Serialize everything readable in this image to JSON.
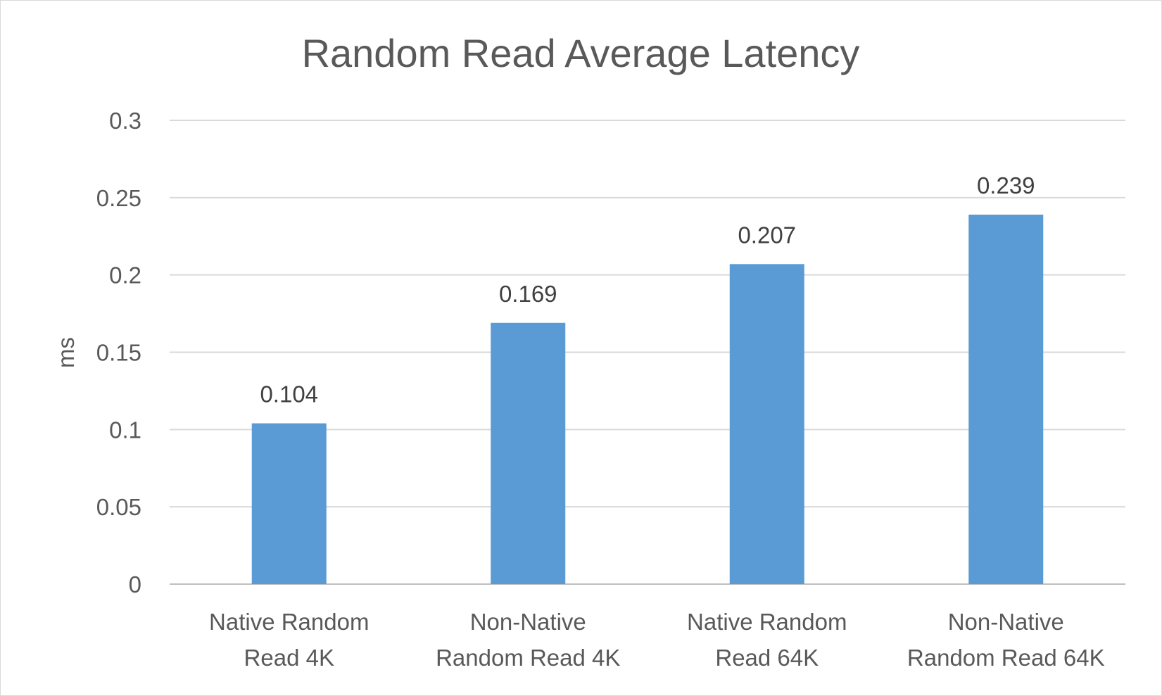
{
  "chart_data": {
    "type": "bar",
    "title": "Random Read Average Latency",
    "xlabel": "",
    "ylabel": "ms",
    "ylim": [
      0,
      0.3
    ],
    "yticks": [
      "0",
      "0.05",
      "0.1",
      "0.15",
      "0.2",
      "0.25",
      "0.3"
    ],
    "categories": [
      [
        "Native Random",
        "Read 4K"
      ],
      [
        "Non-Native",
        "Random Read 4K"
      ],
      [
        "Native Random",
        "Read 64K"
      ],
      [
        "Non-Native",
        "Random Read 64K"
      ]
    ],
    "values": [
      0.104,
      0.169,
      0.207,
      0.239
    ],
    "data_labels": [
      "0.104",
      "0.169",
      "0.207",
      "0.239"
    ],
    "bar_color": "#5b9bd5",
    "grid": true,
    "legend": "none"
  }
}
